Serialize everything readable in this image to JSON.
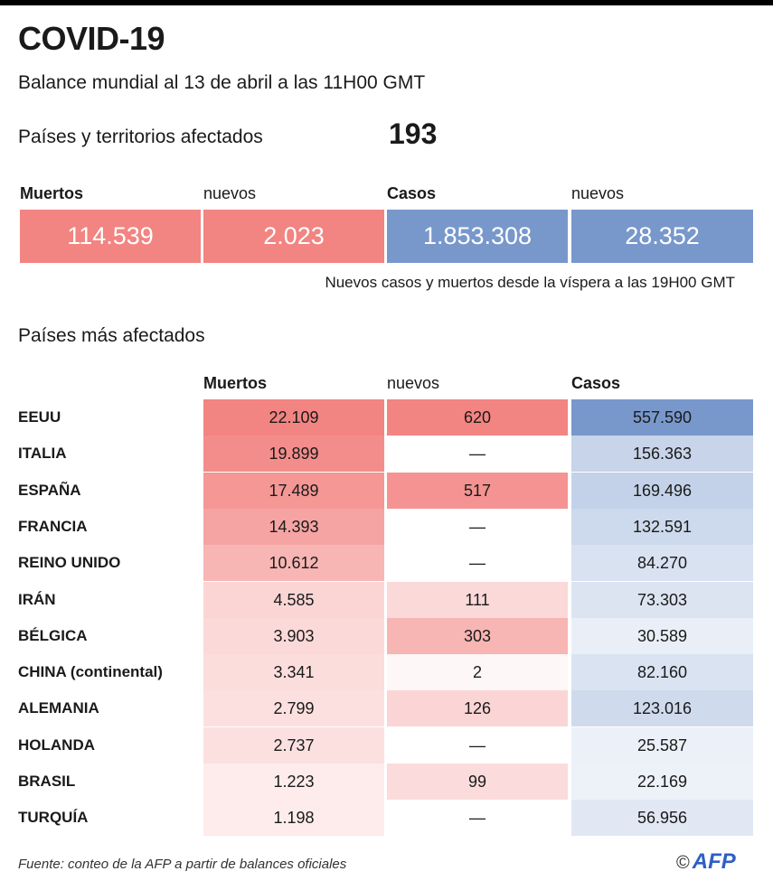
{
  "title": "COVID-19",
  "subtitle": "Balance mundial al 13 de abril a las 11H00 GMT",
  "affected": {
    "label": "Países y territorios afectados",
    "value": "193"
  },
  "summary": {
    "headers": [
      "Muertos",
      "nuevos",
      "Casos",
      "nuevos"
    ],
    "values": [
      "114.539",
      "2.023",
      "1.853.308",
      "28.352"
    ],
    "note": "Nuevos casos y muertos desde la víspera a las 19H00 GMT"
  },
  "colors": {
    "deaths": "#f28482",
    "cases": "#7898cc"
  },
  "chart_data": {
    "type": "table",
    "title": "Países más afectados",
    "columns": [
      "Muertos",
      "nuevos",
      "Casos"
    ],
    "rows": [
      {
        "country": "EEUU",
        "cells": [
          "22.109",
          "620",
          "557.590"
        ]
      },
      {
        "country": "ITALIA",
        "cells": [
          "19.899",
          "—",
          "156.363"
        ]
      },
      {
        "country": "ESPAÑA",
        "cells": [
          "17.489",
          "517",
          "169.496"
        ]
      },
      {
        "country": "FRANCIA",
        "cells": [
          "14.393",
          "—",
          "132.591"
        ]
      },
      {
        "country": "REINO UNIDO",
        "cells": [
          "10.612",
          "—",
          "84.270"
        ]
      },
      {
        "country": "IRÁN",
        "cells": [
          "4.585",
          "111",
          "73.303"
        ]
      },
      {
        "country": "BÉLGICA",
        "cells": [
          "3.903",
          "303",
          "30.589"
        ]
      },
      {
        "country": "CHINA (continental)",
        "cells": [
          "3.341",
          "2",
          "82.160"
        ]
      },
      {
        "country": "ALEMANIA",
        "cells": [
          "2.799",
          "126",
          "123.016"
        ]
      },
      {
        "country": "HOLANDA",
        "cells": [
          "2.737",
          "—",
          "25.587"
        ]
      },
      {
        "country": "BRASIL",
        "cells": [
          "1.223",
          "99",
          "22.169"
        ]
      },
      {
        "country": "TURQUÍA",
        "cells": [
          "1.198",
          "—",
          "56.956"
        ]
      }
    ]
  },
  "footer": {
    "source": "Fuente: conteo de la AFP a partir de balances oficiales",
    "copyright": "©",
    "logo": "AFP"
  }
}
